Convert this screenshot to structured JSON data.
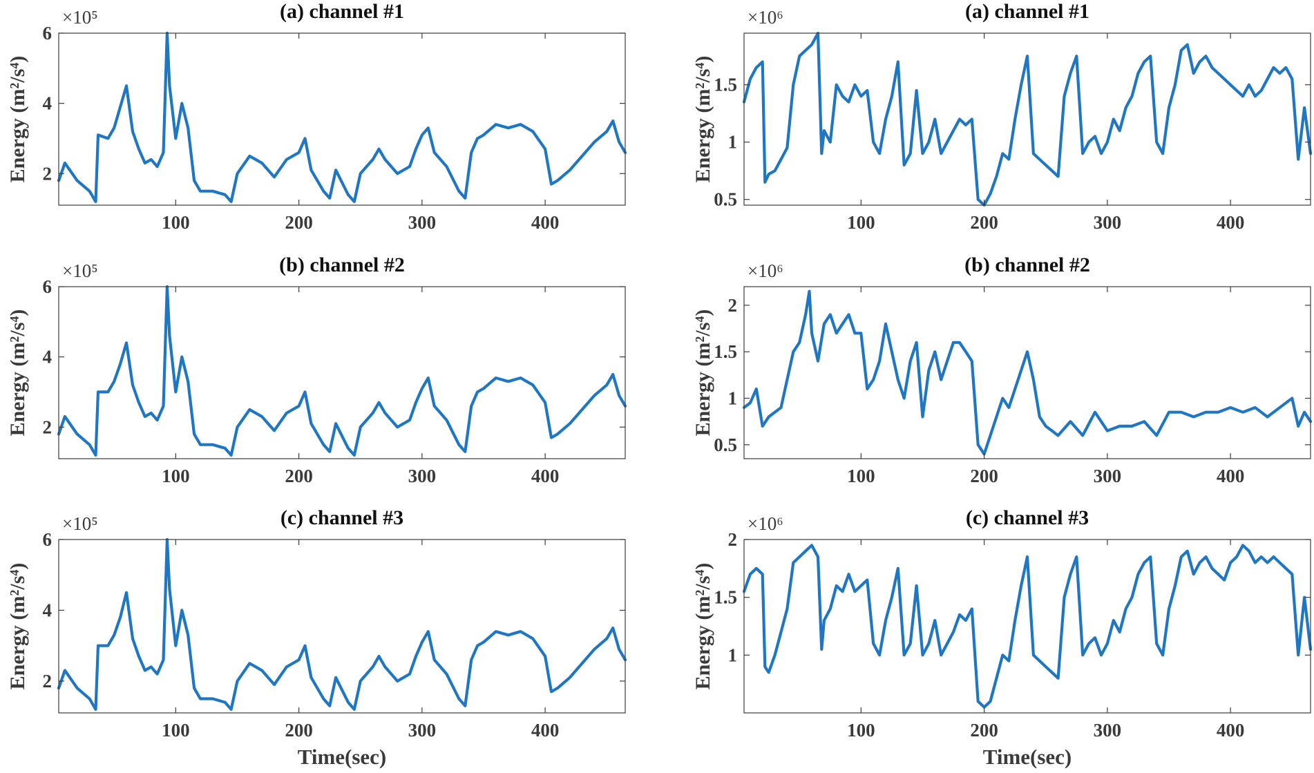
{
  "chart_data": [
    {
      "type": "line",
      "title": "(a) channel #1",
      "xlabel": "",
      "ylabel": "Energy  (m²/s⁴)",
      "y_multiplier": "×10⁵",
      "xlim": [
        5,
        465
      ],
      "ylim": [
        1.1,
        6.0
      ],
      "xticks": [
        100,
        200,
        300,
        400
      ],
      "yticks": [
        2,
        4,
        6
      ],
      "ytick_labels": [
        "2",
        "4",
        "6"
      ],
      "series": [
        {
          "name": "channel #1",
          "x": [
            5,
            10,
            20,
            30,
            35,
            37,
            45,
            50,
            55,
            60,
            65,
            70,
            75,
            80,
            85,
            90,
            93,
            95,
            100,
            105,
            110,
            115,
            120,
            130,
            140,
            145,
            150,
            160,
            170,
            180,
            190,
            200,
            205,
            210,
            220,
            225,
            230,
            240,
            245,
            250,
            260,
            265,
            270,
            280,
            290,
            295,
            300,
            305,
            310,
            320,
            330,
            335,
            340,
            345,
            350,
            360,
            370,
            380,
            390,
            400,
            405,
            410,
            420,
            430,
            440,
            450,
            455,
            460,
            465
          ],
          "values": [
            1.8,
            2.3,
            1.8,
            1.5,
            1.2,
            3.1,
            3.0,
            3.3,
            3.9,
            4.5,
            3.2,
            2.7,
            2.3,
            2.4,
            2.2,
            2.6,
            6.0,
            4.5,
            3.0,
            4.0,
            3.3,
            1.8,
            1.5,
            1.5,
            1.4,
            1.2,
            2.0,
            2.5,
            2.3,
            1.9,
            2.4,
            2.6,
            3.0,
            2.1,
            1.5,
            1.3,
            2.1,
            1.4,
            1.2,
            2.0,
            2.4,
            2.7,
            2.4,
            2.0,
            2.2,
            2.7,
            3.1,
            3.3,
            2.6,
            2.2,
            1.5,
            1.3,
            2.6,
            3.0,
            3.1,
            3.4,
            3.3,
            3.4,
            3.2,
            2.7,
            1.7,
            1.8,
            2.1,
            2.5,
            2.9,
            3.2,
            3.5,
            2.9,
            2.6
          ]
        }
      ]
    },
    {
      "type": "line",
      "title": "(a) channel #1",
      "xlabel": "",
      "ylabel": "Energy  (m²/s⁴)",
      "y_multiplier": "×10⁶",
      "xlim": [
        5,
        465
      ],
      "ylim": [
        0.45,
        1.95
      ],
      "xticks": [
        100,
        200,
        300,
        400
      ],
      "yticks": [
        0.5,
        1,
        1.5
      ],
      "ytick_labels": [
        "0.5",
        "1",
        "1.5"
      ],
      "series": [
        {
          "name": "channel #1",
          "x": [
            5,
            10,
            15,
            20,
            22,
            25,
            30,
            35,
            40,
            45,
            50,
            55,
            60,
            65,
            68,
            70,
            75,
            80,
            85,
            90,
            95,
            100,
            105,
            110,
            115,
            120,
            125,
            130,
            135,
            140,
            145,
            150,
            155,
            160,
            165,
            170,
            175,
            180,
            185,
            190,
            195,
            200,
            205,
            210,
            215,
            220,
            225,
            230,
            235,
            240,
            245,
            250,
            255,
            260,
            265,
            270,
            275,
            280,
            285,
            290,
            295,
            300,
            305,
            310,
            315,
            320,
            325,
            330,
            335,
            340,
            345,
            350,
            355,
            360,
            365,
            370,
            375,
            380,
            385,
            390,
            395,
            400,
            405,
            410,
            415,
            420,
            425,
            430,
            435,
            440,
            445,
            450,
            455,
            460,
            465
          ],
          "values": [
            1.35,
            1.55,
            1.65,
            1.7,
            0.65,
            0.72,
            0.75,
            0.85,
            0.95,
            1.5,
            1.75,
            1.8,
            1.85,
            1.95,
            0.9,
            1.1,
            1.0,
            1.5,
            1.4,
            1.35,
            1.5,
            1.4,
            1.45,
            1.0,
            0.9,
            1.2,
            1.4,
            1.7,
            0.8,
            0.9,
            1.45,
            0.9,
            1.0,
            1.2,
            0.9,
            1.0,
            1.1,
            1.2,
            1.15,
            1.2,
            0.5,
            0.45,
            0.55,
            0.7,
            0.9,
            0.85,
            1.2,
            1.5,
            1.75,
            0.9,
            0.85,
            0.8,
            0.75,
            0.7,
            1.4,
            1.6,
            1.75,
            0.9,
            1.0,
            1.05,
            0.9,
            1.0,
            1.2,
            1.1,
            1.3,
            1.4,
            1.6,
            1.7,
            1.75,
            1.0,
            0.9,
            1.3,
            1.5,
            1.8,
            1.85,
            1.6,
            1.7,
            1.75,
            1.65,
            1.6,
            1.55,
            1.5,
            1.45,
            1.4,
            1.5,
            1.4,
            1.45,
            1.55,
            1.65,
            1.6,
            1.65,
            1.55,
            0.85,
            1.3,
            0.9
          ]
        }
      ]
    },
    {
      "type": "line",
      "title": "(b) channel #2",
      "xlabel": "",
      "ylabel": "Energy  (m²/s⁴)",
      "y_multiplier": "×10⁵",
      "xlim": [
        5,
        465
      ],
      "ylim": [
        1.1,
        6.0
      ],
      "xticks": [
        100,
        200,
        300,
        400
      ],
      "yticks": [
        2,
        4,
        6
      ],
      "ytick_labels": [
        "2",
        "4",
        "6"
      ],
      "series": [
        {
          "name": "channel #2",
          "x": [
            5,
            10,
            20,
            30,
            35,
            37,
            45,
            50,
            55,
            60,
            65,
            70,
            75,
            80,
            85,
            90,
            93,
            95,
            100,
            105,
            110,
            115,
            120,
            130,
            140,
            145,
            150,
            160,
            170,
            180,
            190,
            200,
            205,
            210,
            220,
            225,
            230,
            240,
            245,
            250,
            260,
            265,
            270,
            280,
            290,
            295,
            300,
            305,
            310,
            320,
            330,
            335,
            340,
            345,
            350,
            360,
            370,
            380,
            390,
            400,
            405,
            410,
            420,
            430,
            440,
            450,
            455,
            460,
            465
          ],
          "values": [
            1.8,
            2.3,
            1.8,
            1.5,
            1.2,
            3.0,
            3.0,
            3.3,
            3.8,
            4.4,
            3.2,
            2.7,
            2.3,
            2.4,
            2.2,
            2.6,
            6.0,
            4.6,
            3.0,
            4.0,
            3.3,
            1.8,
            1.5,
            1.5,
            1.4,
            1.2,
            2.0,
            2.5,
            2.3,
            1.9,
            2.4,
            2.6,
            3.0,
            2.1,
            1.5,
            1.3,
            2.1,
            1.4,
            1.2,
            2.0,
            2.4,
            2.7,
            2.4,
            2.0,
            2.2,
            2.7,
            3.1,
            3.4,
            2.6,
            2.2,
            1.5,
            1.3,
            2.6,
            3.0,
            3.1,
            3.4,
            3.3,
            3.4,
            3.2,
            2.7,
            1.7,
            1.8,
            2.1,
            2.5,
            2.9,
            3.2,
            3.5,
            2.9,
            2.6
          ]
        }
      ]
    },
    {
      "type": "line",
      "title": "(b) channel #2",
      "xlabel": "",
      "ylabel": "Energy  (m²/s⁴)",
      "y_multiplier": "×10⁶",
      "xlim": [
        5,
        465
      ],
      "ylim": [
        0.35,
        2.2
      ],
      "xticks": [
        100,
        200,
        300,
        400
      ],
      "yticks": [
        0.5,
        1,
        1.5,
        2
      ],
      "ytick_labels": [
        "0.5",
        "1",
        "1.5",
        "2"
      ],
      "series": [
        {
          "name": "channel #2",
          "x": [
            5,
            10,
            15,
            20,
            25,
            30,
            35,
            40,
            45,
            50,
            55,
            58,
            60,
            65,
            70,
            75,
            80,
            85,
            90,
            95,
            100,
            105,
            110,
            115,
            120,
            125,
            130,
            135,
            140,
            145,
            150,
            155,
            160,
            165,
            170,
            175,
            180,
            185,
            190,
            195,
            200,
            205,
            210,
            215,
            220,
            225,
            230,
            235,
            240,
            245,
            250,
            255,
            260,
            270,
            280,
            290,
            300,
            310,
            320,
            330,
            340,
            350,
            360,
            370,
            380,
            390,
            400,
            410,
            420,
            430,
            440,
            450,
            455,
            460,
            465
          ],
          "values": [
            0.9,
            0.95,
            1.1,
            0.7,
            0.8,
            0.85,
            0.9,
            1.2,
            1.5,
            1.6,
            1.9,
            2.15,
            1.7,
            1.4,
            1.8,
            1.9,
            1.7,
            1.8,
            1.9,
            1.7,
            1.7,
            1.1,
            1.2,
            1.4,
            1.8,
            1.5,
            1.2,
            1.0,
            1.4,
            1.6,
            0.8,
            1.3,
            1.5,
            1.2,
            1.4,
            1.6,
            1.6,
            1.5,
            1.4,
            0.5,
            0.4,
            0.6,
            0.8,
            1.0,
            0.9,
            1.1,
            1.3,
            1.5,
            1.2,
            0.8,
            0.7,
            0.65,
            0.6,
            0.75,
            0.6,
            0.85,
            0.65,
            0.7,
            0.7,
            0.75,
            0.6,
            0.85,
            0.85,
            0.8,
            0.85,
            0.85,
            0.9,
            0.85,
            0.9,
            0.8,
            0.9,
            1.0,
            0.7,
            0.85,
            0.75
          ]
        }
      ]
    },
    {
      "type": "line",
      "title": "(c)    channel #3",
      "xlabel": "Time(sec)",
      "ylabel": "Energy  (m²/s⁴)",
      "y_multiplier": "×10⁵",
      "xlim": [
        5,
        465
      ],
      "ylim": [
        1.1,
        6.0
      ],
      "xticks": [
        100,
        200,
        300,
        400
      ],
      "yticks": [
        2,
        4,
        6
      ],
      "ytick_labels": [
        "2",
        "4",
        "6"
      ],
      "series": [
        {
          "name": "channel #3",
          "x": [
            5,
            10,
            20,
            30,
            35,
            37,
            45,
            50,
            55,
            60,
            65,
            70,
            75,
            80,
            85,
            90,
            93,
            95,
            100,
            105,
            110,
            115,
            120,
            130,
            140,
            145,
            150,
            160,
            170,
            180,
            190,
            200,
            205,
            210,
            220,
            225,
            230,
            240,
            245,
            250,
            260,
            265,
            270,
            280,
            290,
            295,
            300,
            305,
            310,
            320,
            330,
            335,
            340,
            345,
            350,
            360,
            370,
            380,
            390,
            400,
            405,
            410,
            420,
            430,
            440,
            450,
            455,
            460,
            465
          ],
          "values": [
            1.8,
            2.3,
            1.8,
            1.5,
            1.2,
            3.0,
            3.0,
            3.3,
            3.8,
            4.5,
            3.2,
            2.7,
            2.3,
            2.4,
            2.2,
            2.6,
            6.0,
            4.6,
            3.0,
            4.0,
            3.3,
            1.8,
            1.5,
            1.5,
            1.4,
            1.2,
            2.0,
            2.5,
            2.3,
            1.9,
            2.4,
            2.6,
            3.0,
            2.1,
            1.5,
            1.3,
            2.1,
            1.4,
            1.2,
            2.0,
            2.4,
            2.7,
            2.4,
            2.0,
            2.2,
            2.7,
            3.1,
            3.4,
            2.6,
            2.2,
            1.5,
            1.3,
            2.6,
            3.0,
            3.1,
            3.4,
            3.3,
            3.4,
            3.2,
            2.7,
            1.7,
            1.8,
            2.1,
            2.5,
            2.9,
            3.2,
            3.5,
            2.9,
            2.6
          ]
        }
      ]
    },
    {
      "type": "line",
      "title": "(c)    channel #3",
      "xlabel": "Time(sec)",
      "ylabel": "Energy  (m²/s⁴)",
      "y_multiplier": "×10⁶",
      "xlim": [
        5,
        465
      ],
      "ylim": [
        0.5,
        2.0
      ],
      "xticks": [
        100,
        200,
        300,
        400
      ],
      "yticks": [
        1,
        1.5,
        2
      ],
      "ytick_labels": [
        "1",
        "1.5",
        "2"
      ],
      "series": [
        {
          "name": "channel #3",
          "x": [
            5,
            10,
            15,
            20,
            22,
            25,
            30,
            35,
            40,
            45,
            50,
            55,
            60,
            65,
            68,
            70,
            75,
            80,
            85,
            90,
            95,
            100,
            105,
            110,
            115,
            120,
            125,
            130,
            135,
            140,
            145,
            150,
            155,
            160,
            165,
            170,
            175,
            180,
            185,
            190,
            195,
            200,
            205,
            210,
            215,
            220,
            225,
            230,
            235,
            240,
            245,
            250,
            255,
            260,
            265,
            270,
            275,
            280,
            285,
            290,
            295,
            300,
            305,
            310,
            315,
            320,
            325,
            330,
            335,
            340,
            345,
            350,
            355,
            360,
            365,
            370,
            375,
            380,
            385,
            390,
            395,
            400,
            405,
            410,
            415,
            420,
            425,
            430,
            435,
            440,
            445,
            450,
            455,
            460,
            465
          ],
          "values": [
            1.55,
            1.7,
            1.75,
            1.7,
            0.9,
            0.85,
            1.0,
            1.2,
            1.4,
            1.8,
            1.85,
            1.9,
            1.95,
            1.85,
            1.05,
            1.3,
            1.4,
            1.6,
            1.55,
            1.7,
            1.55,
            1.6,
            1.65,
            1.1,
            1.0,
            1.3,
            1.5,
            1.75,
            1.0,
            1.1,
            1.6,
            1.0,
            1.1,
            1.3,
            1.0,
            1.1,
            1.2,
            1.35,
            1.3,
            1.4,
            0.6,
            0.55,
            0.6,
            0.8,
            1.0,
            0.95,
            1.3,
            1.6,
            1.85,
            1.0,
            0.95,
            0.9,
            0.85,
            0.8,
            1.5,
            1.7,
            1.85,
            1.0,
            1.1,
            1.15,
            1.0,
            1.1,
            1.3,
            1.2,
            1.4,
            1.5,
            1.7,
            1.8,
            1.85,
            1.1,
            1.0,
            1.4,
            1.6,
            1.85,
            1.9,
            1.7,
            1.8,
            1.85,
            1.75,
            1.7,
            1.65,
            1.8,
            1.85,
            1.95,
            1.9,
            1.8,
            1.85,
            1.8,
            1.85,
            1.8,
            1.75,
            1.7,
            1.0,
            1.5,
            1.05
          ]
        }
      ]
    }
  ],
  "style": {
    "line_color": "#1f77c4",
    "axis_color": "#3a3a3a",
    "background": "#ffffff"
  }
}
